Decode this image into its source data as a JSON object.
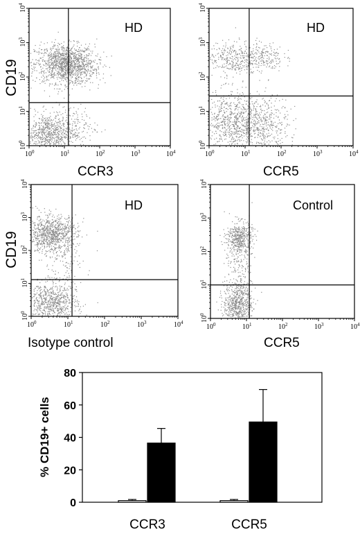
{
  "chart_data": [
    {
      "type": "scatter",
      "panel": "top-left",
      "annotation": "HD",
      "xlabel": "CCR3",
      "ylabel": "CD19",
      "scale": "log",
      "xlim": [
        1,
        10000
      ],
      "ylim": [
        1,
        10000
      ],
      "tick_exponents": [
        "0",
        "1",
        "2",
        "3",
        "4"
      ],
      "quadrant_x": 13,
      "quadrant_y": 18,
      "clusters": [
        {
          "cx": 1.0,
          "cy": 2.4,
          "sx": 0.42,
          "sy": 0.28,
          "n": 1100
        },
        {
          "cx": 0.55,
          "cy": 0.35,
          "sx": 0.35,
          "sy": 0.3,
          "n": 700
        },
        {
          "cx": 1.35,
          "cy": 2.3,
          "sx": 0.35,
          "sy": 0.3,
          "n": 250
        },
        {
          "cx": 1.3,
          "cy": 0.6,
          "sx": 0.3,
          "sy": 0.3,
          "n": 120
        }
      ]
    },
    {
      "type": "scatter",
      "panel": "top-right",
      "annotation": "HD",
      "xlabel": "CCR5",
      "ylabel": "",
      "scale": "log",
      "xlim": [
        1,
        10000
      ],
      "ylim": [
        1,
        10000
      ],
      "tick_exponents": [
        "0",
        "1",
        "2",
        "3",
        "4"
      ],
      "quadrant_x": 13,
      "quadrant_y": 28,
      "clusters": [
        {
          "cx": 0.6,
          "cy": 2.55,
          "sx": 0.35,
          "sy": 0.25,
          "n": 300
        },
        {
          "cx": 1.45,
          "cy": 2.6,
          "sx": 0.3,
          "sy": 0.22,
          "n": 220
        },
        {
          "cx": 0.6,
          "cy": 0.65,
          "sx": 0.4,
          "sy": 0.45,
          "n": 700
        },
        {
          "cx": 1.5,
          "cy": 0.6,
          "sx": 0.35,
          "sy": 0.4,
          "n": 450
        }
      ]
    },
    {
      "type": "scatter",
      "panel": "bottom-left",
      "annotation": "HD",
      "xlabel": "Isotype control",
      "ylabel": "CD19",
      "scale": "log",
      "xlim": [
        1,
        10000
      ],
      "ylim": [
        1,
        10000
      ],
      "tick_exponents": [
        "0",
        "1",
        "2",
        "3",
        "4"
      ],
      "quadrant_x": 13,
      "quadrant_y": 13,
      "clusters": [
        {
          "cx": 0.55,
          "cy": 2.5,
          "sx": 0.35,
          "sy": 0.28,
          "n": 900
        },
        {
          "cx": 0.55,
          "cy": 0.4,
          "sx": 0.35,
          "sy": 0.3,
          "n": 700
        },
        {
          "cx": 0.8,
          "cy": 1.4,
          "sx": 0.3,
          "sy": 0.5,
          "n": 120
        }
      ]
    },
    {
      "type": "scatter",
      "panel": "bottom-right",
      "annotation": "Control",
      "xlabel": "CCR5",
      "ylabel": "",
      "scale": "log",
      "xlim": [
        1,
        10000
      ],
      "ylim": [
        1,
        10000
      ],
      "tick_exponents": [
        "0",
        "1",
        "2",
        "3",
        "4"
      ],
      "quadrant_x": 12,
      "quadrant_y": 10,
      "clusters": [
        {
          "cx": 0.8,
          "cy": 2.4,
          "sx": 0.18,
          "sy": 0.25,
          "n": 450
        },
        {
          "cx": 0.75,
          "cy": 0.45,
          "sx": 0.2,
          "sy": 0.28,
          "n": 550
        },
        {
          "cx": 0.8,
          "cy": 1.4,
          "sx": 0.2,
          "sy": 0.45,
          "n": 150
        }
      ]
    },
    {
      "type": "bar",
      "panel": "bottom",
      "categories": [
        "CCR3",
        "CCR5"
      ],
      "ylabel": "% CD19+ cells",
      "ylim": [
        0,
        80
      ],
      "yticks": [
        "0",
        "20",
        "40",
        "60",
        "80"
      ],
      "series": [
        {
          "color": "#ffffff",
          "values": [
            1,
            1
          ],
          "errors": [
            0.7,
            0.7
          ]
        },
        {
          "color": "#000000",
          "values": [
            36.5,
            49.5
          ],
          "errors": [
            9,
            20
          ]
        }
      ]
    }
  ]
}
